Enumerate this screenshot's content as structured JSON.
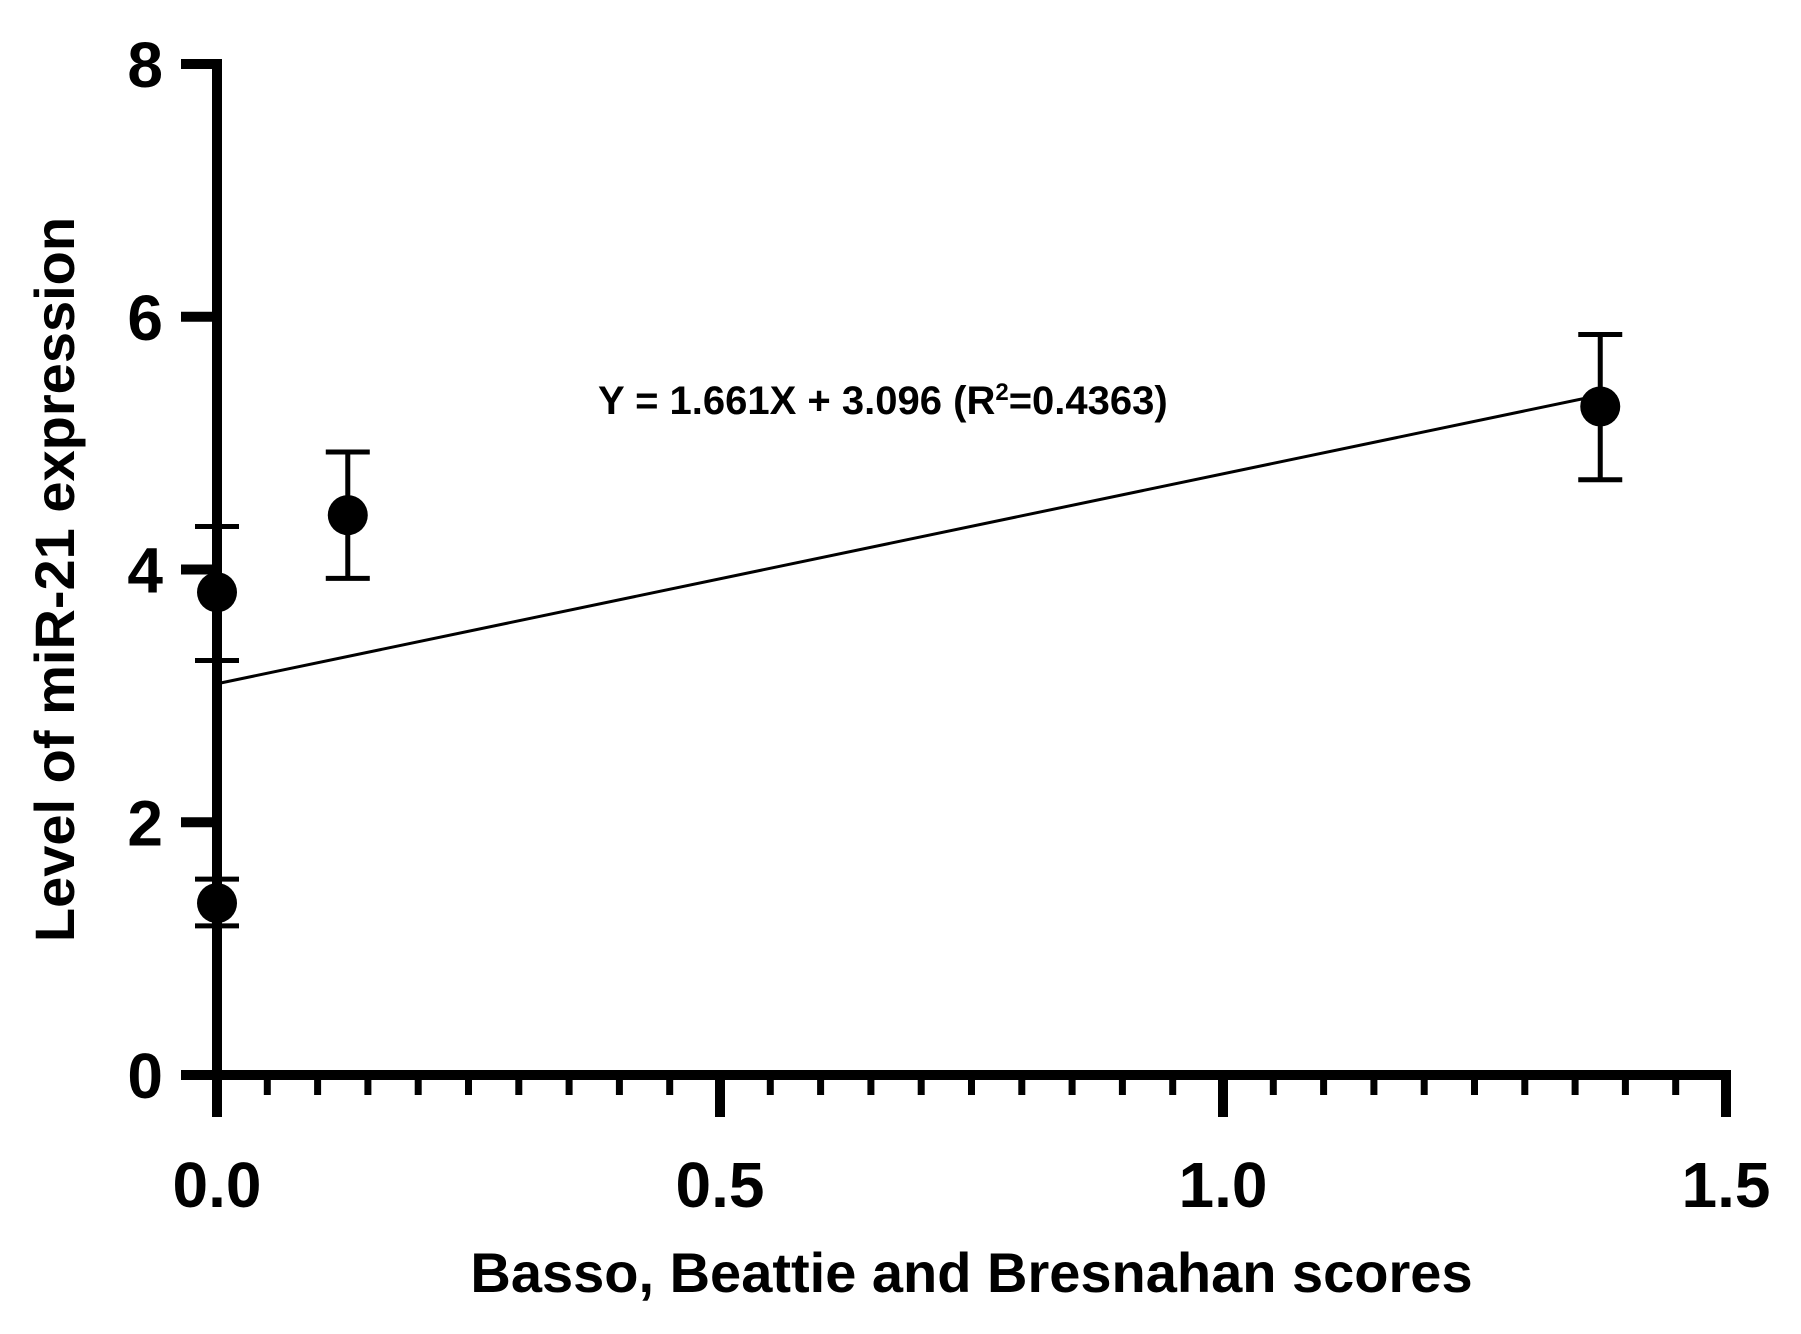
{
  "chart_data": {
    "type": "scatter",
    "xlabel": "Basso, Beattie and Bresnahan scores",
    "ylabel": "Level of miR-21 expression",
    "xlim": [
      0,
      1.5
    ],
    "ylim": [
      0,
      8
    ],
    "x_ticks": [
      0.0,
      0.5,
      1.0,
      1.5
    ],
    "x_tick_labels": [
      "0.0",
      "0.5",
      "1.0",
      "1.5"
    ],
    "x_minor_step": 0.05,
    "y_ticks": [
      0,
      2,
      4,
      6,
      8
    ],
    "y_tick_labels": [
      "0",
      "2",
      "4",
      "6",
      "8"
    ],
    "grid": false,
    "colors": {
      "marker": "#000000",
      "line": "#000000",
      "axis": "#000000"
    },
    "series": [
      {
        "points": [
          {
            "x": 0.0,
            "y": 3.82,
            "err_low": 3.28,
            "err_high": 4.34
          },
          {
            "x": 0.0,
            "y": 1.36,
            "err_low": 1.18,
            "err_high": 1.55
          },
          {
            "x": 0.13,
            "y": 4.43,
            "err_low": 3.93,
            "err_high": 4.93
          },
          {
            "x": 1.375,
            "y": 5.29,
            "err_low": 4.71,
            "err_high": 5.86
          }
        ]
      }
    ],
    "regression": {
      "slope": 1.661,
      "intercept": 3.096,
      "x_range": [
        0,
        1.375
      ],
      "label_main": "Y = 1.661X + 3.096 (R",
      "label_sup": "2",
      "label_tail": "=0.4363)"
    }
  }
}
